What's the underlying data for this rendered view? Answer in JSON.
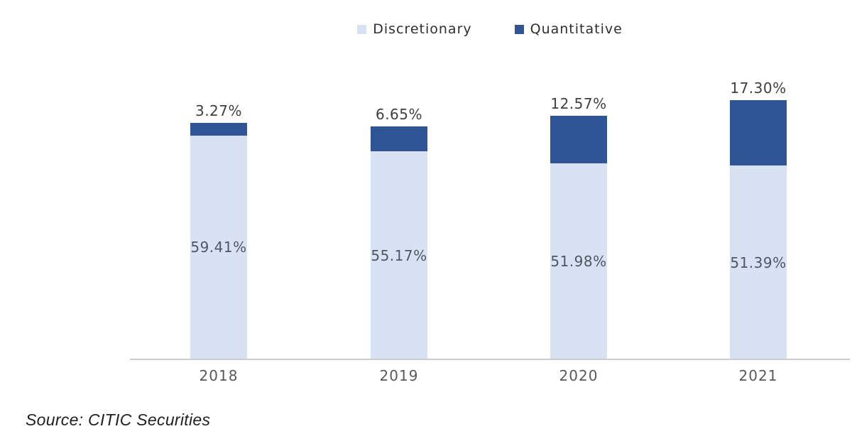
{
  "legend": {
    "items": [
      {
        "label": "Discretionary",
        "color": "#d9e2f3"
      },
      {
        "label": "Quantitative",
        "color": "#2f5597"
      }
    ]
  },
  "chart_data": {
    "type": "bar",
    "stacked": true,
    "title": "",
    "xlabel": "",
    "ylabel": "",
    "grid": false,
    "legend_position": "top-center",
    "baseline_color": "#cccccc",
    "categories": [
      "2018",
      "2019",
      "2020",
      "2021"
    ],
    "series": [
      {
        "name": "Discretionary",
        "color": "#d9e2f3",
        "values": [
          59.41,
          55.17,
          51.98,
          51.39
        ],
        "labels": [
          "59.41%",
          "55.17%",
          "51.98%",
          "51.39%"
        ],
        "label_position": "inside-center"
      },
      {
        "name": "Quantitative",
        "color": "#2f5597",
        "values": [
          3.27,
          6.65,
          12.57,
          17.3
        ],
        "labels": [
          "3.27%",
          "6.65%",
          "12.57%",
          "17.30%"
        ],
        "label_position": "outside-top"
      }
    ],
    "value_unit": "%"
  },
  "footer": {
    "source": "Source: CITIC Securities"
  }
}
